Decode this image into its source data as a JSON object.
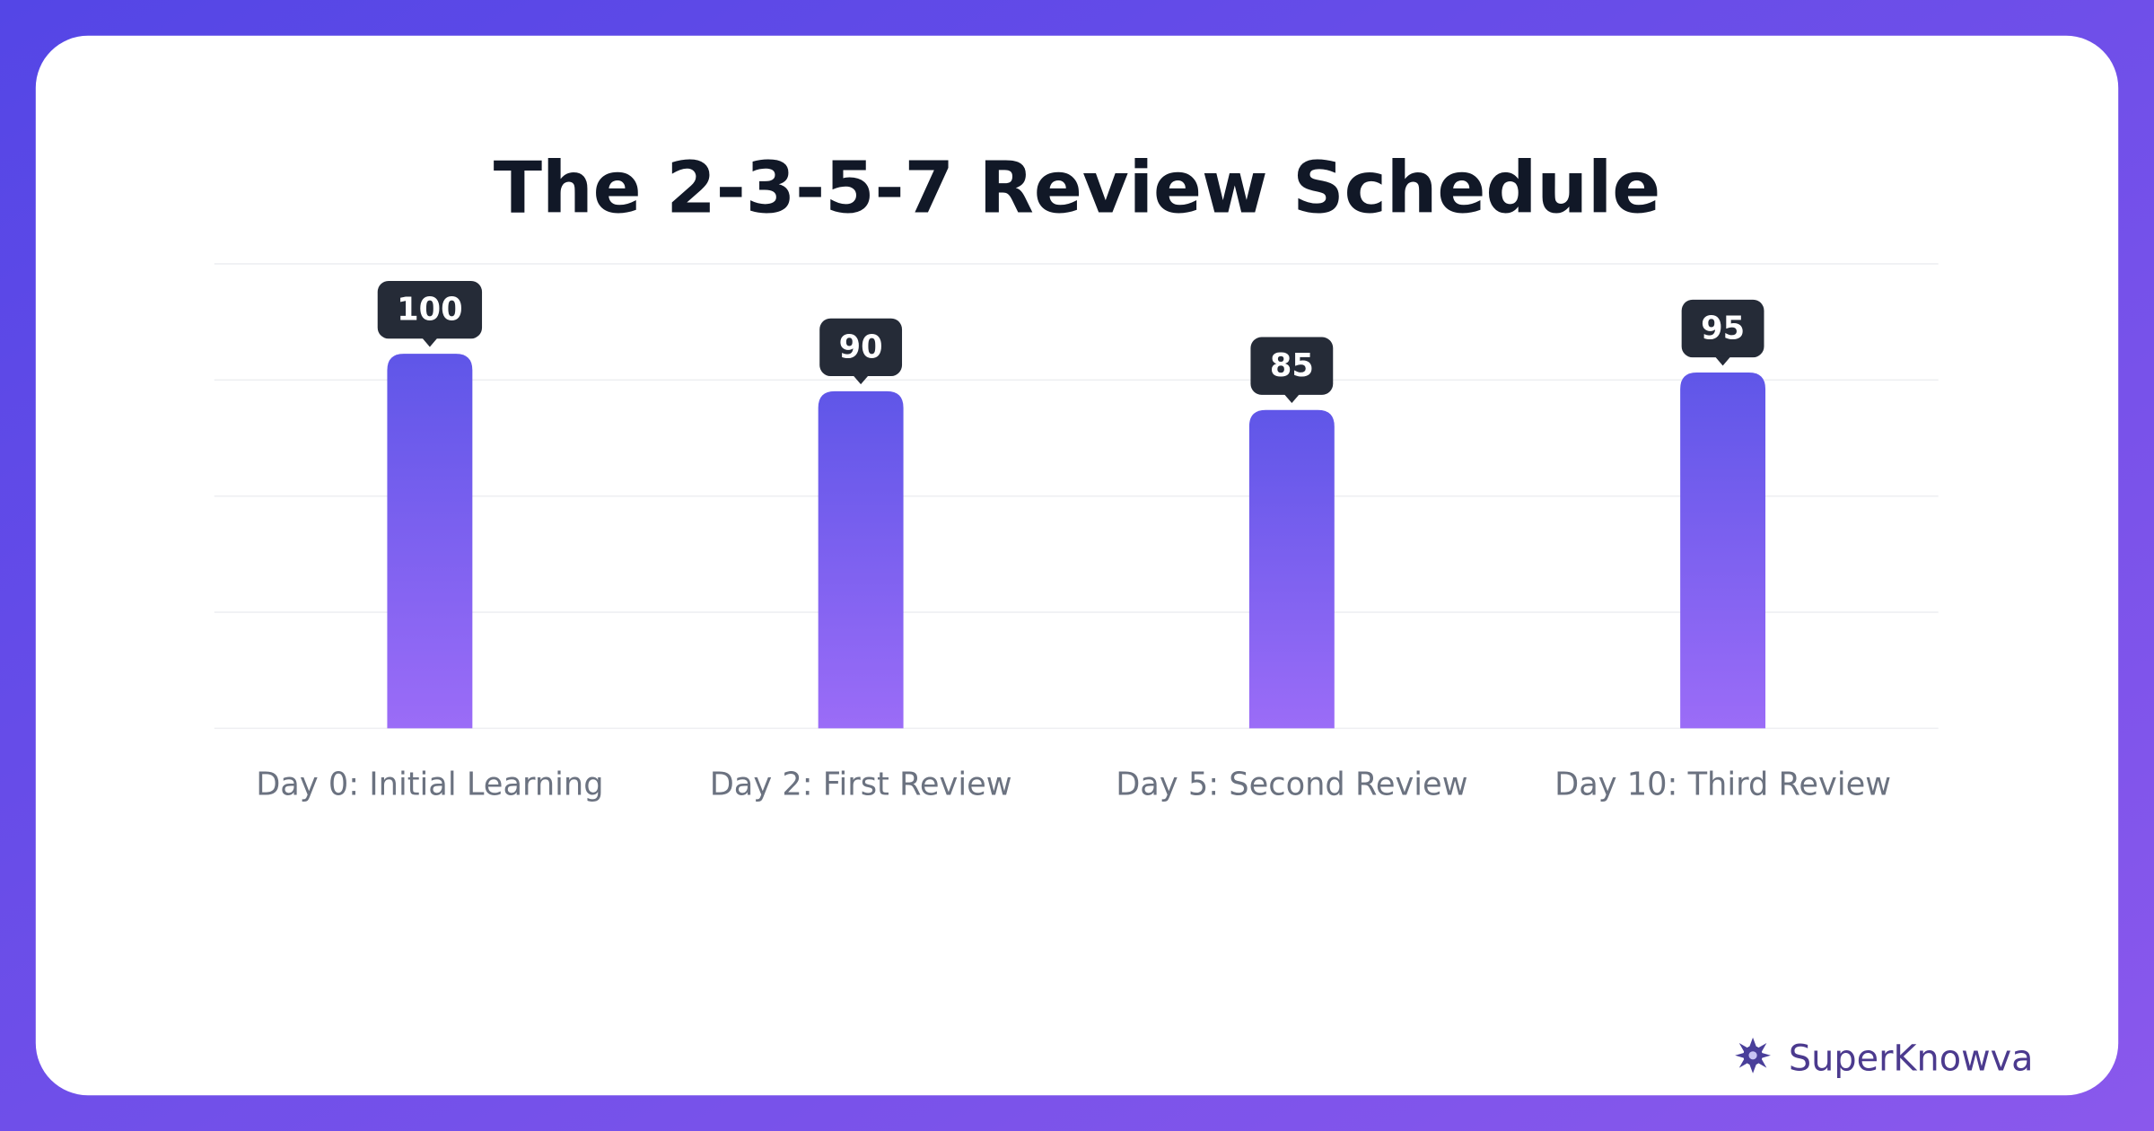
{
  "chart_data": {
    "type": "bar",
    "title": "The 2-3-5-7 Review Schedule",
    "categories": [
      "Day 0: Initial Learning",
      "Day 2: First Review",
      "Day 5: Second Review",
      "Day 10: Third Review"
    ],
    "values": [
      100,
      90,
      85,
      95
    ],
    "color": "#5f56e8",
    "ylim": [
      0,
      124
    ],
    "yticks": [
      0,
      31,
      62,
      93,
      124
    ],
    "grid": true
  },
  "brand": "SuperKnowva"
}
